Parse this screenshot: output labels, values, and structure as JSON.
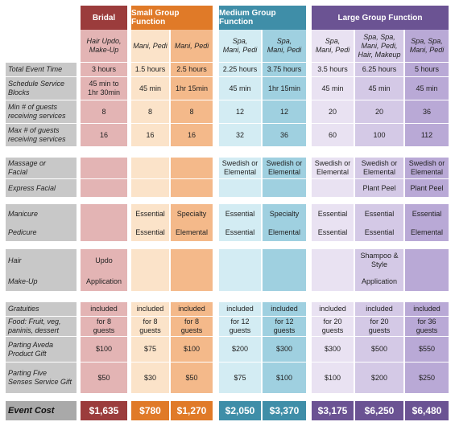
{
  "headers": [
    "Bridal",
    "Small Group Function",
    "Medium Group Function",
    "Large Group Function"
  ],
  "services_row": [
    "Hair Updo,\nMake-Up",
    "Mani, Pedi",
    "Mani, Pedi",
    "Spa,\nMani, Pedi",
    "Spa,\nMani, Pedi",
    "Spa,\nMani, Pedi",
    "Spa, Spa,\nMani, Pedi,\nHair, Makeup",
    "Spa, Spa,\nMani, Pedi"
  ],
  "labels": {
    "total_time": "Total Event Time",
    "schedule": "Schedule Service\nBlocks",
    "min_guests": "Min # of guests\nreceiving services",
    "max_guests": "Max # of guests\nreceiving services",
    "massage": "Massage or\nFacial",
    "express_facial": "Express Facial",
    "manicure": "Manicure",
    "pedicure": "Pedicure",
    "hair": "Hair",
    "makeup": "Make-Up",
    "gratuities": "Gratuities",
    "food": "Food: Fruit, veg,\npaninis, dessert",
    "aveda": "Parting Aveda\nProduct Gift",
    "five_senses": "Parting Five\nSenses Service Gift",
    "event_cost": "Event Cost"
  },
  "total_time": [
    "3 hours",
    "1.5 hours",
    "2.5 hours",
    "2.25 hours",
    "3.75 hours",
    "3.5 hours",
    "6.25 hours",
    "5 hours"
  ],
  "schedule": [
    "45 min to\n1hr 30min",
    "45 min",
    "1hr 15min",
    "45 min",
    "1hr 15min",
    "45 min",
    "45 min",
    "45 min"
  ],
  "min_guests": [
    "8",
    "8",
    "8",
    "12",
    "12",
    "20",
    "20",
    "36"
  ],
  "max_guests": [
    "16",
    "16",
    "16",
    "32",
    "36",
    "60",
    "100",
    "112"
  ],
  "massage": [
    "",
    "",
    "",
    "Swedish or\nElemental",
    "Swedish or\nElemental",
    "Swedish or\nElemental",
    "Swedish or\nElemental",
    "Swedish or\nElemental"
  ],
  "express_facial": [
    "",
    "",
    "",
    "",
    "",
    "",
    "Plant Peel",
    "Plant Peel"
  ],
  "manicure": [
    "",
    "Essential",
    "Specialty",
    "Essential",
    "Specialty",
    "Essential",
    "Essential",
    "Essential"
  ],
  "pedicure": [
    "",
    "Essential",
    "Elemental",
    "Essential",
    "Elemental",
    "Essential",
    "Essential",
    "Elemental"
  ],
  "hair": [
    "Updo",
    "",
    "",
    "",
    "",
    "",
    "Shampoo &\nStyle",
    ""
  ],
  "makeup": [
    "Application",
    "",
    "",
    "",
    "",
    "",
    "Application",
    ""
  ],
  "gratuities": [
    "included",
    "included",
    "included",
    "included",
    "included",
    "included",
    "included",
    "included"
  ],
  "food": [
    "for 8\nguests",
    "for 8\nguests",
    "for 8\nguests",
    "for 12\nguests",
    "for 12\nguests",
    "for 20\nguests",
    "for 20\nguests",
    "for 36\nguests"
  ],
  "aveda": [
    "$100",
    "$75",
    "$100",
    "$200",
    "$300",
    "$300",
    "$500",
    "$550"
  ],
  "five_senses": [
    "$50",
    "$30",
    "$50",
    "$75",
    "$100",
    "$100",
    "$200",
    "$250"
  ],
  "event_cost": [
    "$1,635",
    "$780",
    "$1,270",
    "$2,050",
    "$3,370",
    "$3,175",
    "$6,250",
    "$6,480"
  ],
  "colors": {
    "bridal_header": "#9b3c3c",
    "small_header": "#e07a28",
    "medium_header": "#3f8ea8",
    "large_header": "#6b5393",
    "bridal_cell": "#e3b4b4",
    "small_cell_a": "#fbe3c9",
    "small_cell_b": "#f4b98a",
    "medium_cell_a": "#d3ecf3",
    "medium_cell_b": "#9fd0e0",
    "large_cell_a": "#e9e2f2",
    "large_cell_b": "#d4c9e6",
    "large_cell_c": "#b9a9d6",
    "label_bg": "#c8c8c8"
  }
}
